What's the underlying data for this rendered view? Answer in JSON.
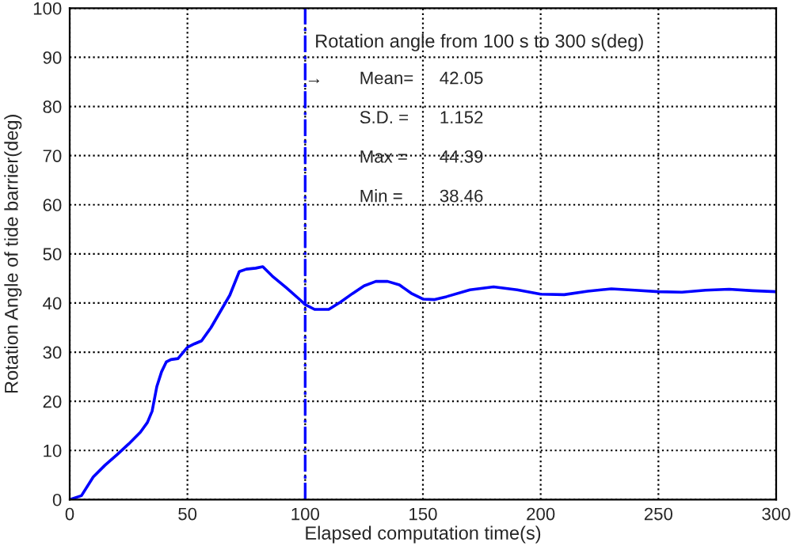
{
  "chart_data": {
    "type": "line",
    "xlabel": "Elapsed computation time(s)",
    "ylabel": "Rotation Angle of tide barrier(deg)",
    "series": [
      {
        "color": "#0000ff",
        "x": [
          0,
          5,
          10,
          15,
          20,
          25,
          30,
          33,
          35,
          37,
          39,
          41,
          43,
          46,
          50,
          53,
          56,
          60,
          64,
          68,
          72,
          75,
          79,
          82,
          86,
          92,
          97,
          100,
          104,
          110,
          115,
          120,
          125,
          130,
          135,
          140,
          145,
          150,
          155,
          160,
          170,
          180,
          190,
          200,
          210,
          220,
          230,
          240,
          250,
          260,
          270,
          280,
          290,
          300
        ],
        "values": [
          0,
          0.8,
          4.6,
          7,
          9.1,
          11.3,
          13.7,
          15.7,
          18,
          23,
          26,
          28,
          28.5,
          28.7,
          31,
          31.7,
          32.3,
          35,
          38.3,
          41.6,
          46.4,
          46.9,
          47.1,
          47.4,
          45.5,
          43.1,
          41,
          39.7,
          38.7,
          38.7,
          40.2,
          41.9,
          43.5,
          44.4,
          44.4,
          43.7,
          42,
          40.8,
          40.7,
          41.3,
          42.7,
          43.3,
          42.7,
          41.8,
          41.7,
          42.4,
          42.9,
          42.6,
          42.3,
          42.2,
          42.6,
          42.8,
          42.5,
          42.3
        ]
      }
    ],
    "xlim": [
      0,
      300
    ],
    "ylim": [
      0,
      100
    ],
    "xticks": [
      0,
      50,
      100,
      150,
      200,
      250,
      300
    ],
    "yticks": [
      0,
      10,
      20,
      30,
      40,
      50,
      60,
      70,
      80,
      90,
      100
    ],
    "grid": true,
    "line_style": "solid",
    "marker": "none",
    "ref_lines": [
      {
        "axis": "x",
        "value": 100,
        "color": "#0000ff",
        "line_style": "dashdot"
      }
    ],
    "annotations": [
      "Rotation angle from 100 s to 300 s(deg)",
      "→",
      "Mean=",
      "42.05",
      "S.D. =",
      "1.152",
      "Max =",
      "44.39",
      "Min =",
      "38.46"
    ]
  }
}
